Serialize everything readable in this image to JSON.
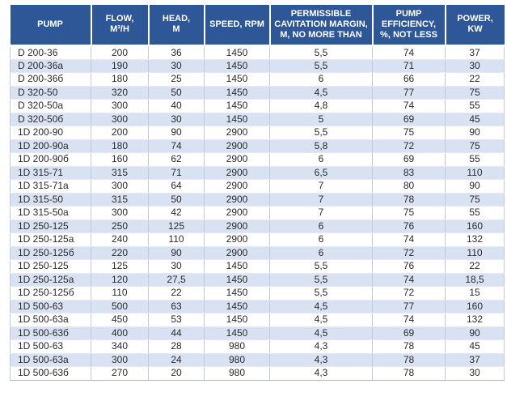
{
  "colors": {
    "header_bg": "#2e5797",
    "header_fg": "#ffffff",
    "stripe_bg": "#d9e2f3",
    "row_bg": "#ffffff",
    "body_fg": "#2b2b2b",
    "grid_line": "#c2c9d6"
  },
  "table": {
    "columns": [
      {
        "id": "pump",
        "label": "PUMP"
      },
      {
        "id": "flow",
        "label": "FLOW,\nM³/H"
      },
      {
        "id": "head",
        "label": "HEAD,\nM"
      },
      {
        "id": "speed",
        "label": "SPEED, RPM"
      },
      {
        "id": "cavitation",
        "label": "PERMISSIBLE\nCAVITATION MARGIN,\nM, NO MORE THAN"
      },
      {
        "id": "efficiency",
        "label": "PUMP\nEFFICIENCY,\n%, NOT LESS"
      },
      {
        "id": "power",
        "label": "POWER,\nKW"
      }
    ],
    "rows": [
      [
        "D 200-36",
        "200",
        "36",
        "1450",
        "5,5",
        "74",
        "37"
      ],
      [
        "D 200-36a",
        "190",
        "30",
        "1450",
        "5,5",
        "71",
        "30"
      ],
      [
        "D 200-36б",
        "180",
        "25",
        "1450",
        "6",
        "66",
        "22"
      ],
      [
        "D 320-50",
        "320",
        "50",
        "1450",
        "4,5",
        "77",
        "75"
      ],
      [
        "D 320-50a",
        "300",
        "40",
        "1450",
        "4,8",
        "74",
        "55"
      ],
      [
        "D 320-50б",
        "300",
        "30",
        "1450",
        "5",
        "69",
        "45"
      ],
      [
        "1D 200-90",
        "200",
        "90",
        "2900",
        "5,5",
        "75",
        "90"
      ],
      [
        "1D 200-90a",
        "180",
        "74",
        "2900",
        "5,8",
        "72",
        "75"
      ],
      [
        "1D 200-90б",
        "160",
        "62",
        "2900",
        "6",
        "69",
        "55"
      ],
      [
        "1D 315-71",
        "315",
        "71",
        "2900",
        "6,5",
        "83",
        "110"
      ],
      [
        "1D 315-71a",
        "300",
        "64",
        "2900",
        "7",
        "80",
        "90"
      ],
      [
        "1D 315-50",
        "315",
        "50",
        "2900",
        "7",
        "78",
        "75"
      ],
      [
        "1D 315-50a",
        "300",
        "42",
        "2900",
        "7",
        "75",
        "55"
      ],
      [
        "1D 250-125",
        "250",
        "125",
        "2900",
        "6",
        "76",
        "160"
      ],
      [
        "1D 250-125a",
        "240",
        "110",
        "2900",
        "6",
        "74",
        "132"
      ],
      [
        "1D 250-125б",
        "220",
        "90",
        "2900",
        "6",
        "72",
        "110"
      ],
      [
        "1D 250-125",
        "125",
        "30",
        "1450",
        "5,5",
        "76",
        "22"
      ],
      [
        "1D 250-125a",
        "120",
        "27,5",
        "1450",
        "5,5",
        "74",
        "18,5"
      ],
      [
        "1D 250-125б",
        "110",
        "22",
        "1450",
        "5,5",
        "72",
        "15"
      ],
      [
        "1D 500-63",
        "500",
        "63",
        "1450",
        "4,5",
        "77",
        "160"
      ],
      [
        "1D 500-63a",
        "450",
        "53",
        "1450",
        "4,5",
        "74",
        "132"
      ],
      [
        "1D 500-63б",
        "400",
        "44",
        "1450",
        "4,5",
        "69",
        "90"
      ],
      [
        "1D 500-63",
        "340",
        "28",
        "980",
        "4,3",
        "78",
        "45"
      ],
      [
        "1D 500-63a",
        "300",
        "24",
        "980",
        "4,3",
        "78",
        "37"
      ],
      [
        "1D 500-63б",
        "270",
        "20",
        "980",
        "4,3",
        "78",
        "30"
      ]
    ]
  }
}
